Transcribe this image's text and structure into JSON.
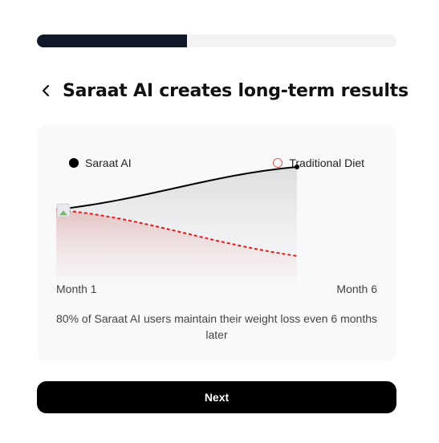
{
  "progress": {
    "value": 0.417
  },
  "header": {
    "title": "Saraat AI creates long-term results"
  },
  "legend": {
    "saraat": "Saraat AI",
    "traditional": "Traditional Diet"
  },
  "chart_data": {
    "type": "line",
    "x": [
      "Month 1",
      "Month 6"
    ],
    "xlabel": "",
    "ylabel": "",
    "series": [
      {
        "name": "Saraat AI",
        "values": [
          0.52,
          1.0
        ],
        "style": "solid",
        "color": "#000000"
      },
      {
        "name": "Traditional Diet",
        "values": [
          0.52,
          0.0
        ],
        "style": "dashed",
        "color": "#e01b1b"
      }
    ]
  },
  "axis": {
    "start": "Month 1",
    "end": "Month 6"
  },
  "caption": "80% of Saraat AI users maintain their weight loss even 6 months later",
  "next_button": {
    "label": "Next"
  },
  "colors": {
    "accent": "#000000",
    "progress": "#111827",
    "traditional": "#e01b1b"
  }
}
